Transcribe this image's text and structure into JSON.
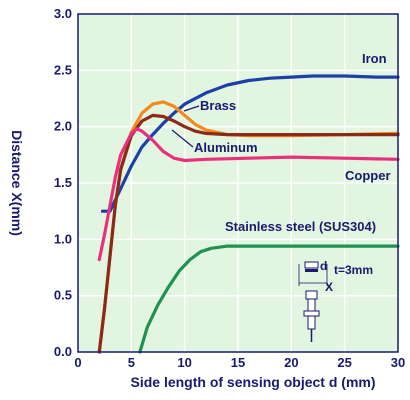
{
  "colors": {
    "plot_bg": "#e2f5e0",
    "frame": "#1a1a6e",
    "grid": "#ffffff",
    "Iron": "#1e3fa8",
    "Brass": "#f28a1e",
    "Aluminum": "#8b2a18",
    "Copper": "#e8307c",
    "Stainless": "#1f9150"
  },
  "chart_data": {
    "type": "line",
    "xlabel": "Side length of sensing object d (mm)",
    "ylabel": "Distance X(mm)",
    "xlim": [
      0,
      30
    ],
    "ylim": [
      0,
      3.0
    ],
    "x_ticks": [
      "0",
      "5",
      "10",
      "15",
      "20",
      "25",
      "30"
    ],
    "y_ticks": [
      "0.0",
      "0.5",
      "1.0",
      "1.5",
      "2.0",
      "2.5",
      "3.0"
    ],
    "grid": true,
    "series": [
      {
        "name": "Iron",
        "color_key": "Iron",
        "points": [
          [
            2.3,
            1.25
          ],
          [
            3,
            1.25
          ],
          [
            4,
            1.45
          ],
          [
            5,
            1.65
          ],
          [
            6,
            1.82
          ],
          [
            7,
            1.93
          ],
          [
            8,
            2.03
          ],
          [
            9,
            2.12
          ],
          [
            10,
            2.2
          ],
          [
            12,
            2.3
          ],
          [
            14,
            2.37
          ],
          [
            16,
            2.41
          ],
          [
            18,
            2.43
          ],
          [
            20,
            2.44
          ],
          [
            22,
            2.45
          ],
          [
            25,
            2.45
          ],
          [
            28,
            2.44
          ],
          [
            30,
            2.44
          ]
        ]
      },
      {
        "name": "Brass",
        "color_key": "Brass",
        "points": [
          [
            2,
            0
          ],
          [
            2.5,
            0.4
          ],
          [
            3,
            0.85
          ],
          [
            3.5,
            1.3
          ],
          [
            4,
            1.62
          ],
          [
            5,
            1.95
          ],
          [
            6,
            2.12
          ],
          [
            7,
            2.2
          ],
          [
            8,
            2.22
          ],
          [
            9,
            2.18
          ],
          [
            10,
            2.1
          ],
          [
            11,
            2.02
          ],
          [
            12,
            1.97
          ],
          [
            14,
            1.93
          ],
          [
            16,
            1.92
          ],
          [
            20,
            1.92
          ],
          [
            25,
            1.93
          ],
          [
            30,
            1.94
          ]
        ]
      },
      {
        "name": "Aluminum",
        "color_key": "Aluminum",
        "points": [
          [
            2,
            0
          ],
          [
            2.5,
            0.4
          ],
          [
            3,
            0.85
          ],
          [
            3.5,
            1.3
          ],
          [
            4,
            1.62
          ],
          [
            5,
            1.92
          ],
          [
            6,
            2.05
          ],
          [
            7,
            2.1
          ],
          [
            8,
            2.09
          ],
          [
            9,
            2.05
          ],
          [
            10,
            2.0
          ],
          [
            11,
            1.96
          ],
          [
            12,
            1.94
          ],
          [
            14,
            1.93
          ],
          [
            16,
            1.93
          ],
          [
            20,
            1.93
          ],
          [
            25,
            1.93
          ],
          [
            30,
            1.93
          ]
        ]
      },
      {
        "name": "Copper",
        "color_key": "Copper",
        "points": [
          [
            2,
            0.82
          ],
          [
            2.5,
            1.05
          ],
          [
            3,
            1.3
          ],
          [
            3.5,
            1.55
          ],
          [
            4,
            1.75
          ],
          [
            5,
            1.94
          ],
          [
            5.5,
            1.98
          ],
          [
            6,
            1.96
          ],
          [
            7,
            1.88
          ],
          [
            8,
            1.78
          ],
          [
            9,
            1.72
          ],
          [
            10,
            1.7
          ],
          [
            12,
            1.71
          ],
          [
            16,
            1.72
          ],
          [
            20,
            1.73
          ],
          [
            25,
            1.72
          ],
          [
            30,
            1.71
          ]
        ]
      },
      {
        "name": "Stainless steel (SUS304)",
        "color_key": "Stainless",
        "points": [
          [
            5.8,
            0
          ],
          [
            6.5,
            0.22
          ],
          [
            7.5,
            0.42
          ],
          [
            8.5,
            0.58
          ],
          [
            9.5,
            0.72
          ],
          [
            10.5,
            0.82
          ],
          [
            11.5,
            0.89
          ],
          [
            12.5,
            0.92
          ],
          [
            14,
            0.94
          ],
          [
            18,
            0.94
          ],
          [
            22,
            0.94
          ],
          [
            26,
            0.94
          ],
          [
            30,
            0.94
          ]
        ]
      }
    ],
    "labels": {
      "iron": "Iron",
      "brass": "Brass",
      "aluminum": "Aluminum",
      "copper": "Copper",
      "stainless": "Stainless steel (SUS304)"
    }
  },
  "sensor_diagram": {
    "d_label": "d",
    "t_label": "t=3mm",
    "x_label": "X"
  }
}
